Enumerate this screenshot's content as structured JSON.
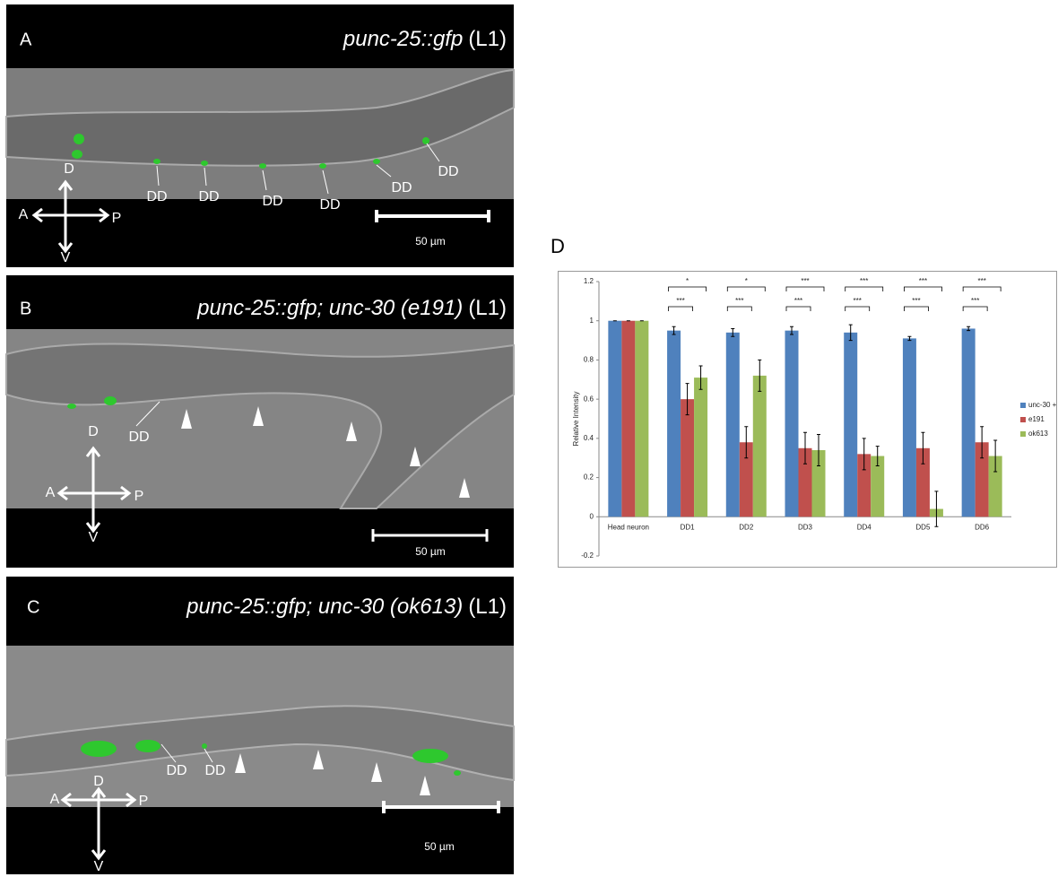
{
  "panels": {
    "A": {
      "label": "A",
      "title_italic": "punc-25::gfp",
      "title_stage": "(L1)",
      "cell_labels": [
        "DD",
        "DD",
        "DD",
        "DD",
        "DD",
        "DD"
      ],
      "compass": {
        "dorsal": "D",
        "ventral": "V",
        "anterior": "A",
        "posterior": "P"
      },
      "scale": "50 µm"
    },
    "B": {
      "label": "B",
      "title_italic": "punc-25::gfp; unc-30 (e191)",
      "title_stage": "(L1)",
      "cell_labels": [
        "DD"
      ],
      "compass": {
        "dorsal": "D",
        "ventral": "V",
        "anterior": "A",
        "posterior": "P"
      },
      "scale": "50 µm"
    },
    "C": {
      "label": "C",
      "title_italic": "punc-25::gfp; unc-30 (ok613)",
      "title_stage": "(L1)",
      "cell_labels": [
        "DD",
        "DD"
      ],
      "compass": {
        "dorsal": "D",
        "ventral": "V",
        "anterior": "A",
        "posterior": "P"
      },
      "scale": "50 µm"
    },
    "D": {
      "label": "D"
    }
  },
  "chart_data": {
    "type": "bar",
    "ylabel": "Relative Intensity",
    "categories": [
      "Head neuron",
      "DD1",
      "DD2",
      "DD3",
      "DD4",
      "DD5",
      "DD6"
    ],
    "series": [
      {
        "name": "unc-30 +",
        "color": "#4f81bd",
        "values": [
          1,
          0.95,
          0.94,
          0.95,
          0.94,
          0.91,
          0.96
        ],
        "errors": [
          0,
          0.02,
          0.02,
          0.02,
          0.04,
          0.01,
          0.01
        ]
      },
      {
        "name": "e191",
        "color": "#c0504d",
        "values": [
          1,
          0.6,
          0.38,
          0.35,
          0.32,
          0.35,
          0.38
        ],
        "errors": [
          0,
          0.08,
          0.08,
          0.08,
          0.08,
          0.08,
          0.08
        ]
      },
      {
        "name": "ok613",
        "color": "#9bbb59",
        "values": [
          1,
          0.71,
          0.72,
          0.34,
          0.31,
          0.04,
          0.31
        ],
        "errors": [
          0,
          0.06,
          0.08,
          0.08,
          0.05,
          0.09,
          0.08
        ]
      }
    ],
    "significance_upper": [
      null,
      "*",
      "*",
      "***",
      "***",
      "***",
      "***"
    ],
    "significance_lower": [
      null,
      "***",
      "***",
      "***",
      "***",
      "***",
      "***"
    ],
    "ylim": [
      -0.2,
      1.2
    ],
    "yticks": [
      -0.2,
      0,
      0.2,
      0.4,
      0.6,
      0.8,
      1,
      1.2
    ],
    "grid": false,
    "legend": "right"
  }
}
